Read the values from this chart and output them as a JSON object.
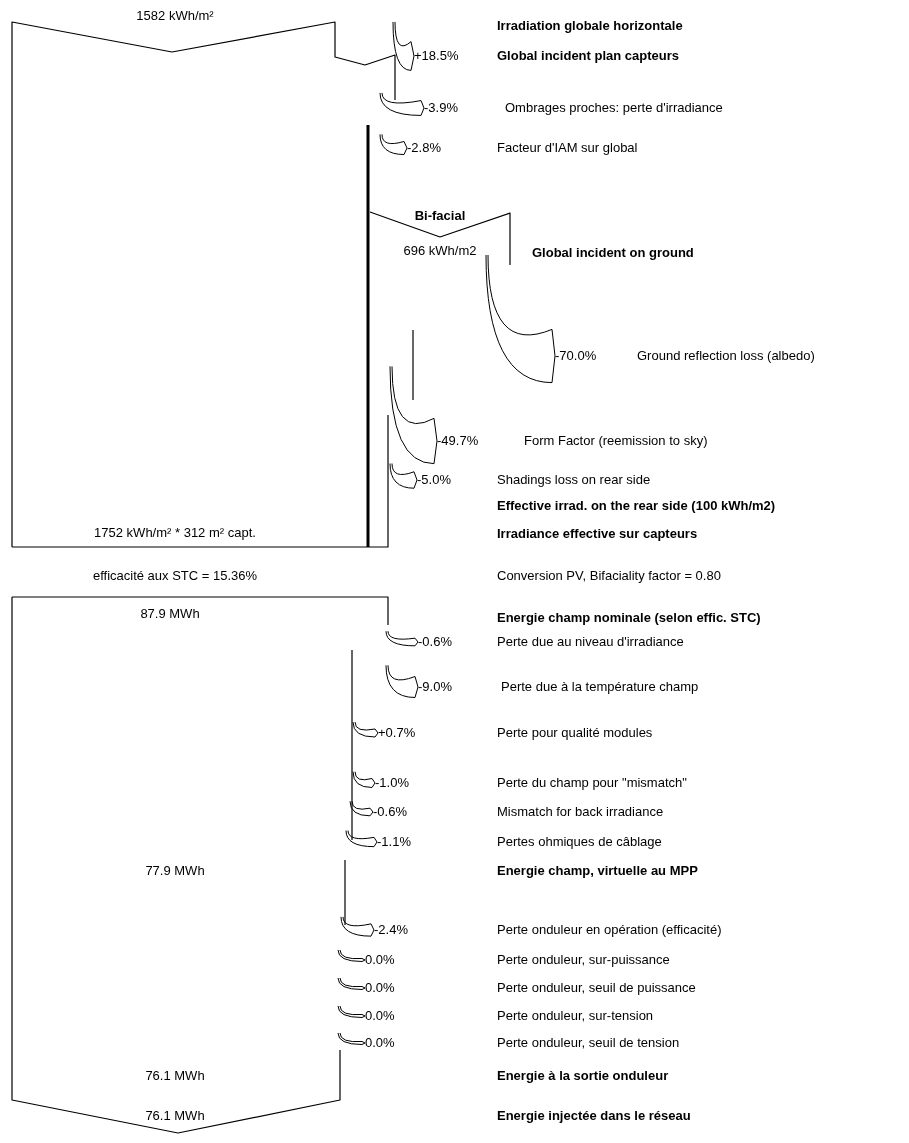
{
  "chart_data": {
    "type": "other",
    "categories": [
      "Global incident plan capteurs",
      "Ombrages proches: perte d'irradiance",
      "Facteur d'IAM  sur global",
      "Ground reflection loss (albedo)",
      "Form Factor (reemission to sky)",
      "Shadings loss on rear side",
      "Perte due au niveau d'irradiance",
      "Perte due à la température champ",
      "Perte pour qualité modules",
      "Perte du champ pour \"mismatch\"",
      "Mismatch for back irradiance",
      "Pertes ohmiques de câblage",
      "Perte onduleur en opération (efficacité)",
      "Perte onduleur, sur-puissance",
      "Perte onduleur, seuil de puissance",
      "Perte onduleur, sur-tension",
      "Perte onduleur, seuil de tension"
    ],
    "values": [
      18.5,
      -3.9,
      -2.8,
      -70.0,
      -49.7,
      -5.0,
      -0.6,
      -9.0,
      0.7,
      -1.0,
      -0.6,
      -1.1,
      -2.4,
      0.0,
      0.0,
      0.0,
      0.0
    ],
    "value_labels": [
      "+18.5%",
      "-3.9%",
      "-2.8%",
      "-70.0%",
      "-49.7%",
      "-5.0%",
      "-0.6%",
      "-9.0%",
      "+0.7%",
      "-1.0%",
      "-0.6%",
      "-1.1%",
      "-2.4%",
      "0.0%",
      "0.0%",
      "0.0%",
      "0.0%"
    ],
    "annotations": [
      "1582 kWh/m²",
      "Irradiation globale horizontale",
      "Bi-facial",
      "696 kWh/m2",
      "Global incident on ground",
      "Effective irrad. on the rear side  (100 kWh/m2)",
      "1752 kWh/m² * 312 m² capt.",
      "Irradiance effective sur capteurs",
      "efficacité aux STC = 15.36%",
      "Conversion PV,   Bifaciality factor = 0.80",
      "87.9 MWh",
      "Energie champ nominale (selon effic. STC)",
      "77.9 MWh",
      "Energie champ, virtuelle au MPP",
      "76.1 MWh",
      "Energie à la sortie onduleur",
      "76.1 MWh",
      "Energie injectée dans le réseau"
    ]
  }
}
